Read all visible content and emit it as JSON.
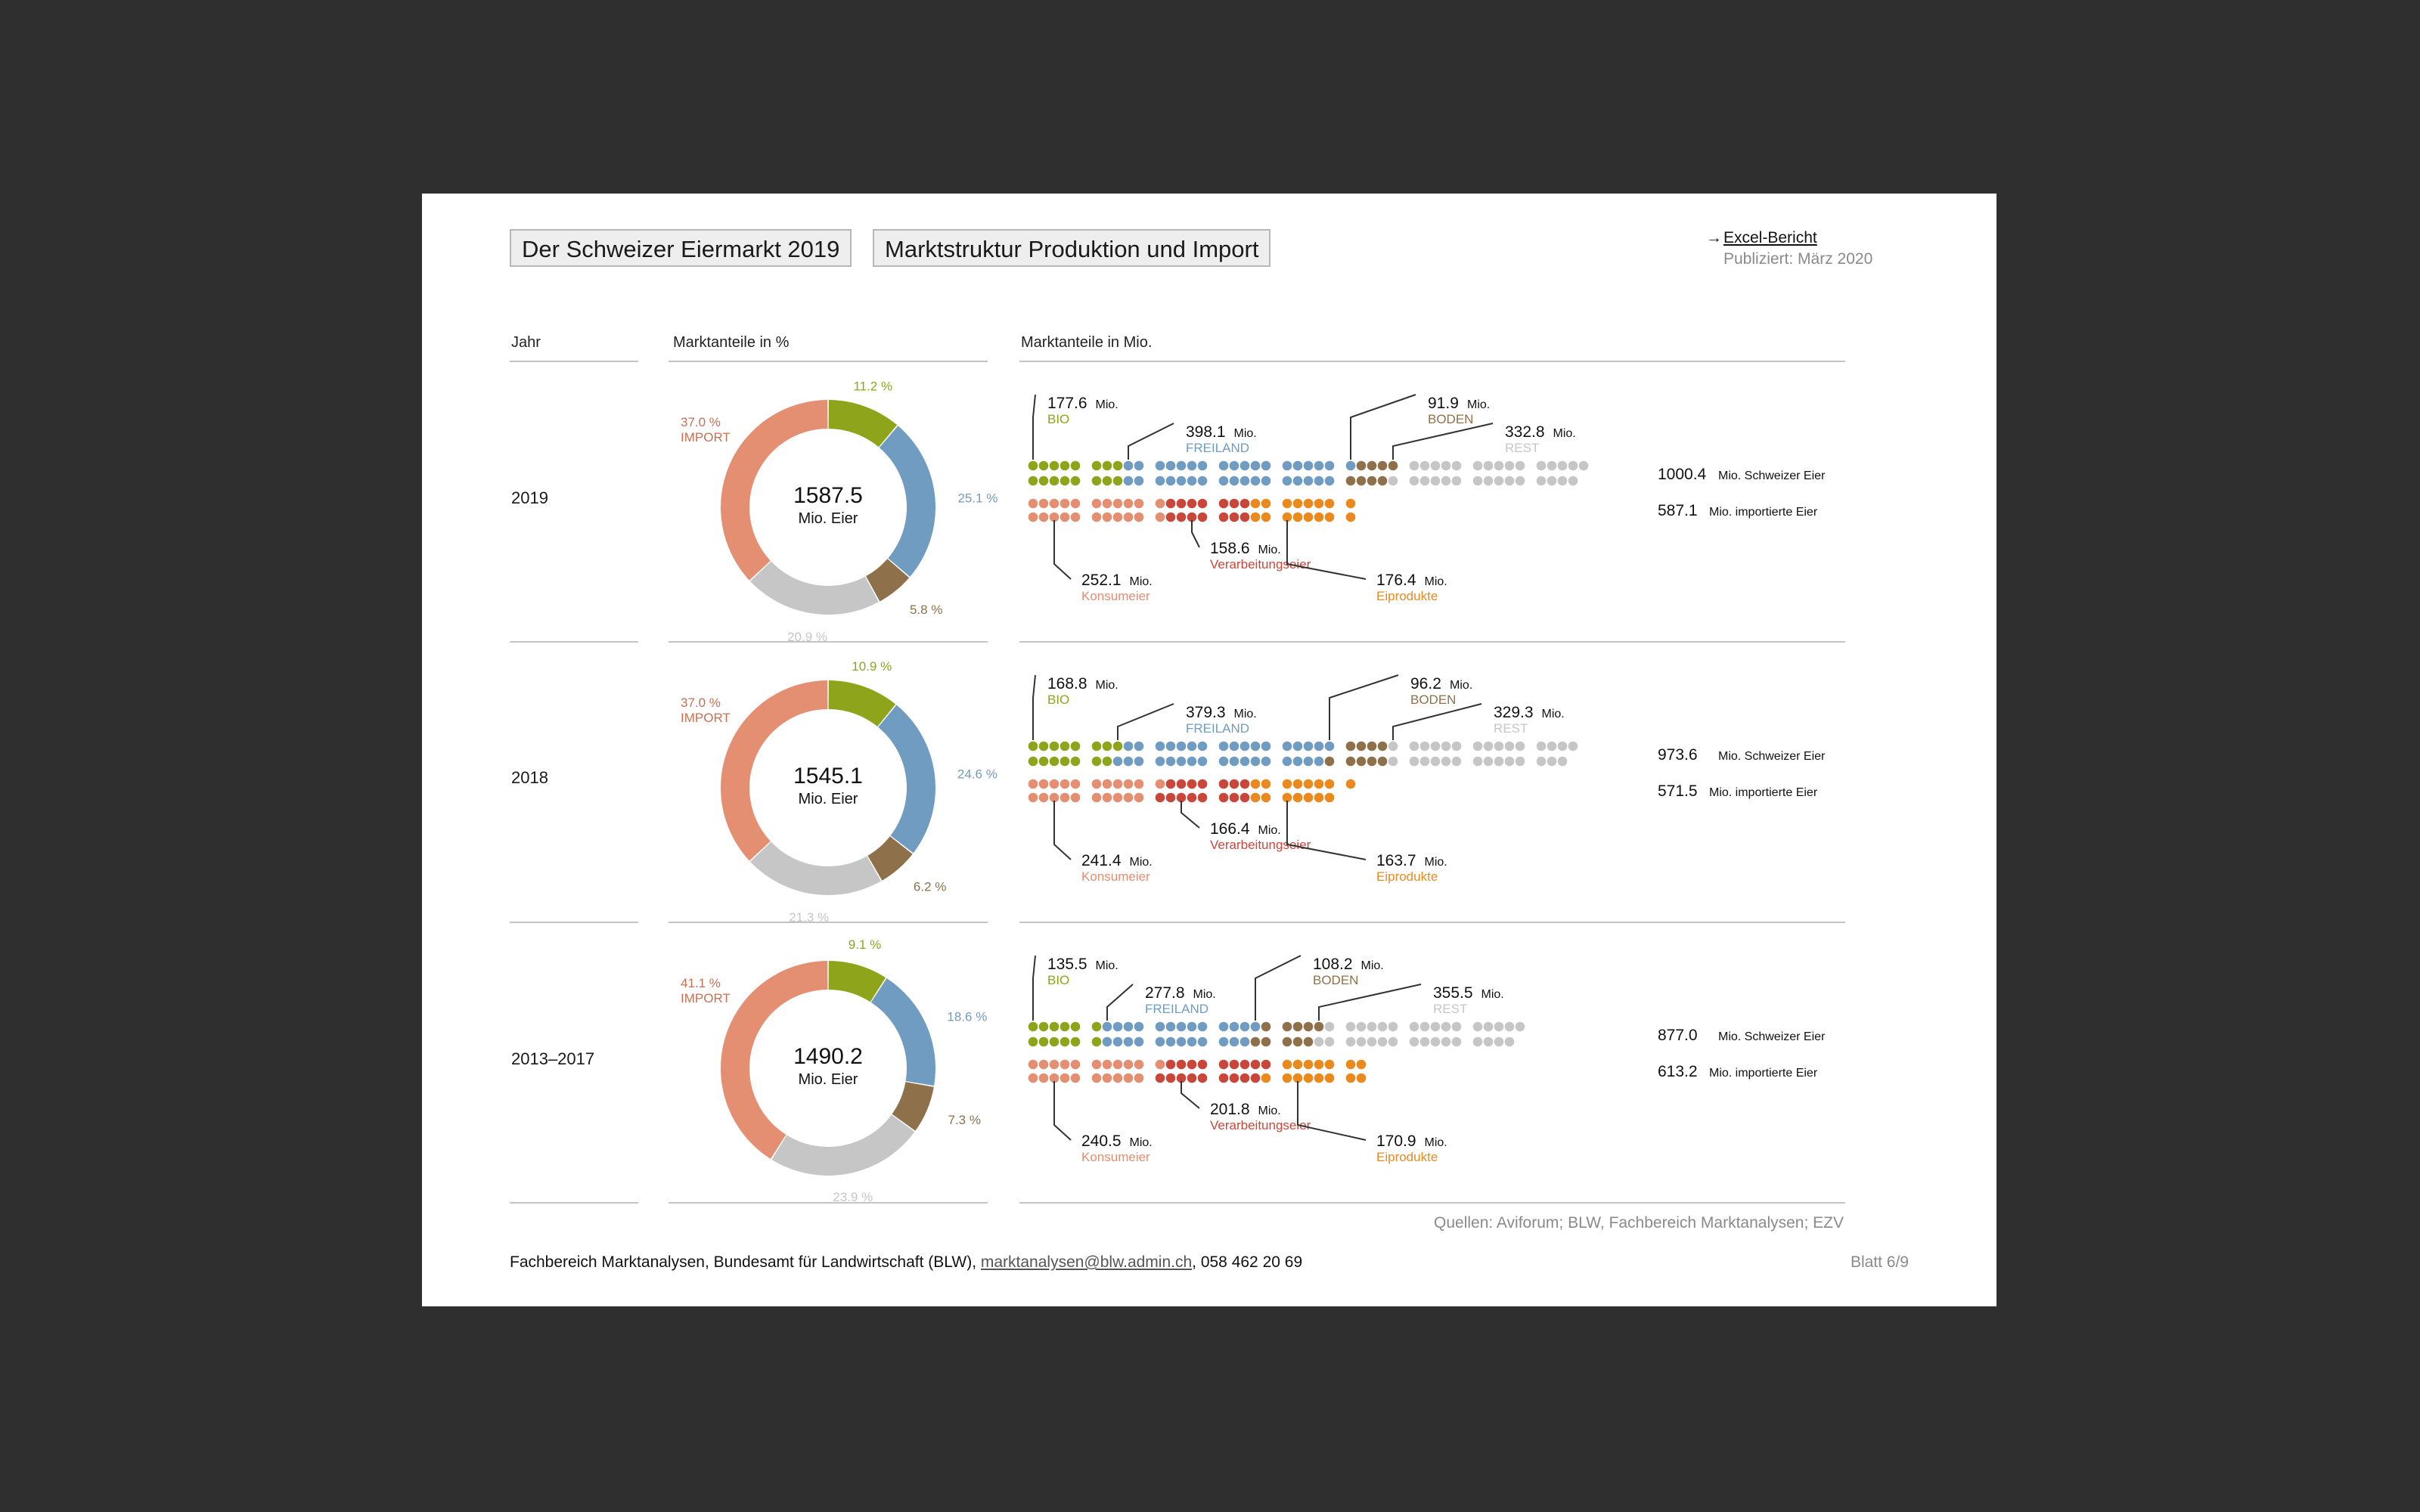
{
  "header": {
    "title": "Der Schweizer Eiermarkt 2019",
    "subtitle": "Marktstruktur Produktion und Import",
    "link_label": "Excel-Bericht",
    "published": "Publiziert: März 2020"
  },
  "columns": {
    "year": "Jahr",
    "percent": "Marktanteile in %",
    "millions": "Marktanteile in Mio."
  },
  "colors": {
    "bio": "#8ea51b",
    "freiland": "#6f9cc0",
    "boden": "#8e714a",
    "rest": "#c6c6c6",
    "import": "#e48e72",
    "konsumeier": "#e48e72",
    "verarbeitungseier": "#c9473a",
    "eiprodukte": "#ea8a1e"
  },
  "labels": {
    "bio": "BIO",
    "freiland": "FREILAND",
    "boden": "BODEN",
    "rest": "REST",
    "import": "IMPORT",
    "konsumeier": "Konsumeier",
    "verarbeitungseier": "Verarbeitungseier",
    "eiprodukte": "Eiprodukte",
    "mio": "Mio.",
    "mio_eier": "Mio. Eier",
    "swiss_suffix": "Mio. Schweizer Eier",
    "import_suffix": "Mio. importierte Eier"
  },
  "chart_data": [
    {
      "type": "pie",
      "period": "2019",
      "center_value": "1587.5",
      "total": 1587.5,
      "shares_pct": {
        "bio": "11.2 %",
        "freiland": "25.1 %",
        "boden": "5.8 %",
        "rest": "20.9 %",
        "import": "37.0 %"
      },
      "shares": {
        "bio": 11.2,
        "freiland": 25.1,
        "boden": 5.8,
        "rest": 20.9,
        "import": 37.0
      },
      "domestic": {
        "bio": 177.6,
        "freiland": 398.1,
        "boden": 91.9,
        "rest": 332.8
      },
      "domestic_labels": {
        "bio": "177.6",
        "freiland": "398.1",
        "boden": "91.9",
        "rest": "332.8"
      },
      "imports": {
        "konsumeier": 252.1,
        "verarbeitungseier": 158.6,
        "eiprodukte": 176.4
      },
      "import_labels": {
        "konsumeier": "252.1",
        "verarbeitungseier": "158.6",
        "eiprodukte": "176.4"
      },
      "swiss_total": "1000.4",
      "import_total": "587.1"
    },
    {
      "type": "pie",
      "period": "2018",
      "center_value": "1545.1",
      "total": 1545.1,
      "shares_pct": {
        "bio": "10.9 %",
        "freiland": "24.6 %",
        "boden": "6.2 %",
        "rest": "21.3 %",
        "import": "37.0 %"
      },
      "shares": {
        "bio": 10.9,
        "freiland": 24.6,
        "boden": 6.2,
        "rest": 21.3,
        "import": 37.0
      },
      "domestic": {
        "bio": 168.8,
        "freiland": 379.3,
        "boden": 96.2,
        "rest": 329.3
      },
      "domestic_labels": {
        "bio": "168.8",
        "freiland": "379.3",
        "boden": "96.2",
        "rest": "329.3"
      },
      "imports": {
        "konsumeier": 241.4,
        "verarbeitungseier": 166.4,
        "eiprodukte": 163.7
      },
      "import_labels": {
        "konsumeier": "241.4",
        "verarbeitungseier": "166.4",
        "eiprodukte": "163.7"
      },
      "swiss_total": "973.6",
      "import_total": "571.5"
    },
    {
      "type": "pie",
      "period": "2013–2017",
      "center_value": "1490.2",
      "total": 1490.2,
      "shares_pct": {
        "bio": "9.1 %",
        "freiland": "18.6 %",
        "boden": "7.3 %",
        "rest": "23.9 %",
        "import": "41.1 %"
      },
      "shares": {
        "bio": 9.1,
        "freiland": 18.6,
        "boden": 7.3,
        "rest": 23.9,
        "import": 41.1
      },
      "domestic": {
        "bio": 135.5,
        "freiland": 277.8,
        "boden": 108.2,
        "rest": 355.5
      },
      "domestic_labels": {
        "bio": "135.5",
        "freiland": "277.8",
        "boden": "108.2",
        "rest": "355.5"
      },
      "imports": {
        "konsumeier": 240.5,
        "verarbeitungseier": 201.8,
        "eiprodukte": 170.9
      },
      "import_labels": {
        "konsumeier": "240.5",
        "verarbeitungseier": "201.8",
        "eiprodukte": "170.9"
      },
      "swiss_total": "877.0",
      "import_total": "613.2"
    }
  ],
  "footer": {
    "sources": "Quellen: Aviforum; BLW, Fachbereich Marktanalysen; EZV",
    "org": "Fachbereich Marktanalysen, Bundesamt für Landwirtschaft (BLW), ",
    "email": "marktanalysen@blw.admin.ch",
    "phone": ", 058 462 20 69",
    "page": "Blatt 6/9"
  }
}
